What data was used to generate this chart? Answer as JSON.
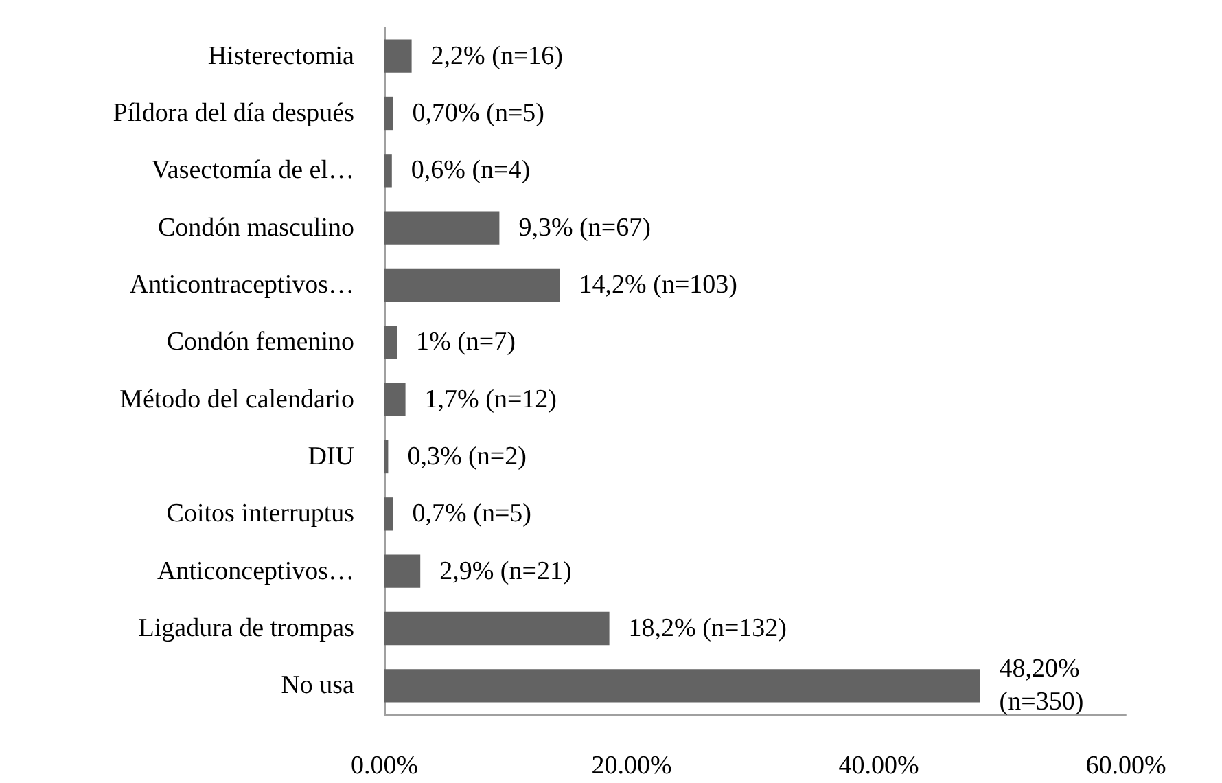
{
  "chart_data": {
    "type": "bar",
    "orientation": "horizontal",
    "categories": [
      "Histerectomia",
      "Píldora del día después",
      "Vasectomía de el…",
      "Condón masculino",
      "Anticontraceptivos…",
      "Condón femenino",
      "Método del calendario",
      "DIU",
      "Coitos interruptus",
      "Anticonceptivos…",
      "Ligadura de trompas",
      "No usa"
    ],
    "xlim": [
      0,
      60
    ],
    "xticks": [
      {
        "value": 0,
        "label": "0.00%"
      },
      {
        "value": 20,
        "label": "20.00%"
      },
      {
        "value": 40,
        "label": "40.00%"
      },
      {
        "value": 60,
        "label": "60.00%"
      }
    ],
    "values": [
      2.2,
      0.7,
      0.6,
      9.3,
      14.2,
      1,
      1.7,
      0.3,
      0.7,
      2.9,
      18.2,
      48.2
    ],
    "value_labels": [
      "2,2% (n=16)",
      "0,70% (n=5)",
      "0,6% (n=4)",
      "9,3% (n=67)",
      "14,2% (n=103)",
      "1% (n=7)",
      "1,7% (n=12)",
      "0,3% (n=2)",
      "0,7% (n=5)",
      "2,9% (n=21)",
      "18,2% (n=132)",
      "48,20% (n=350)"
    ],
    "color": "#636363"
  }
}
